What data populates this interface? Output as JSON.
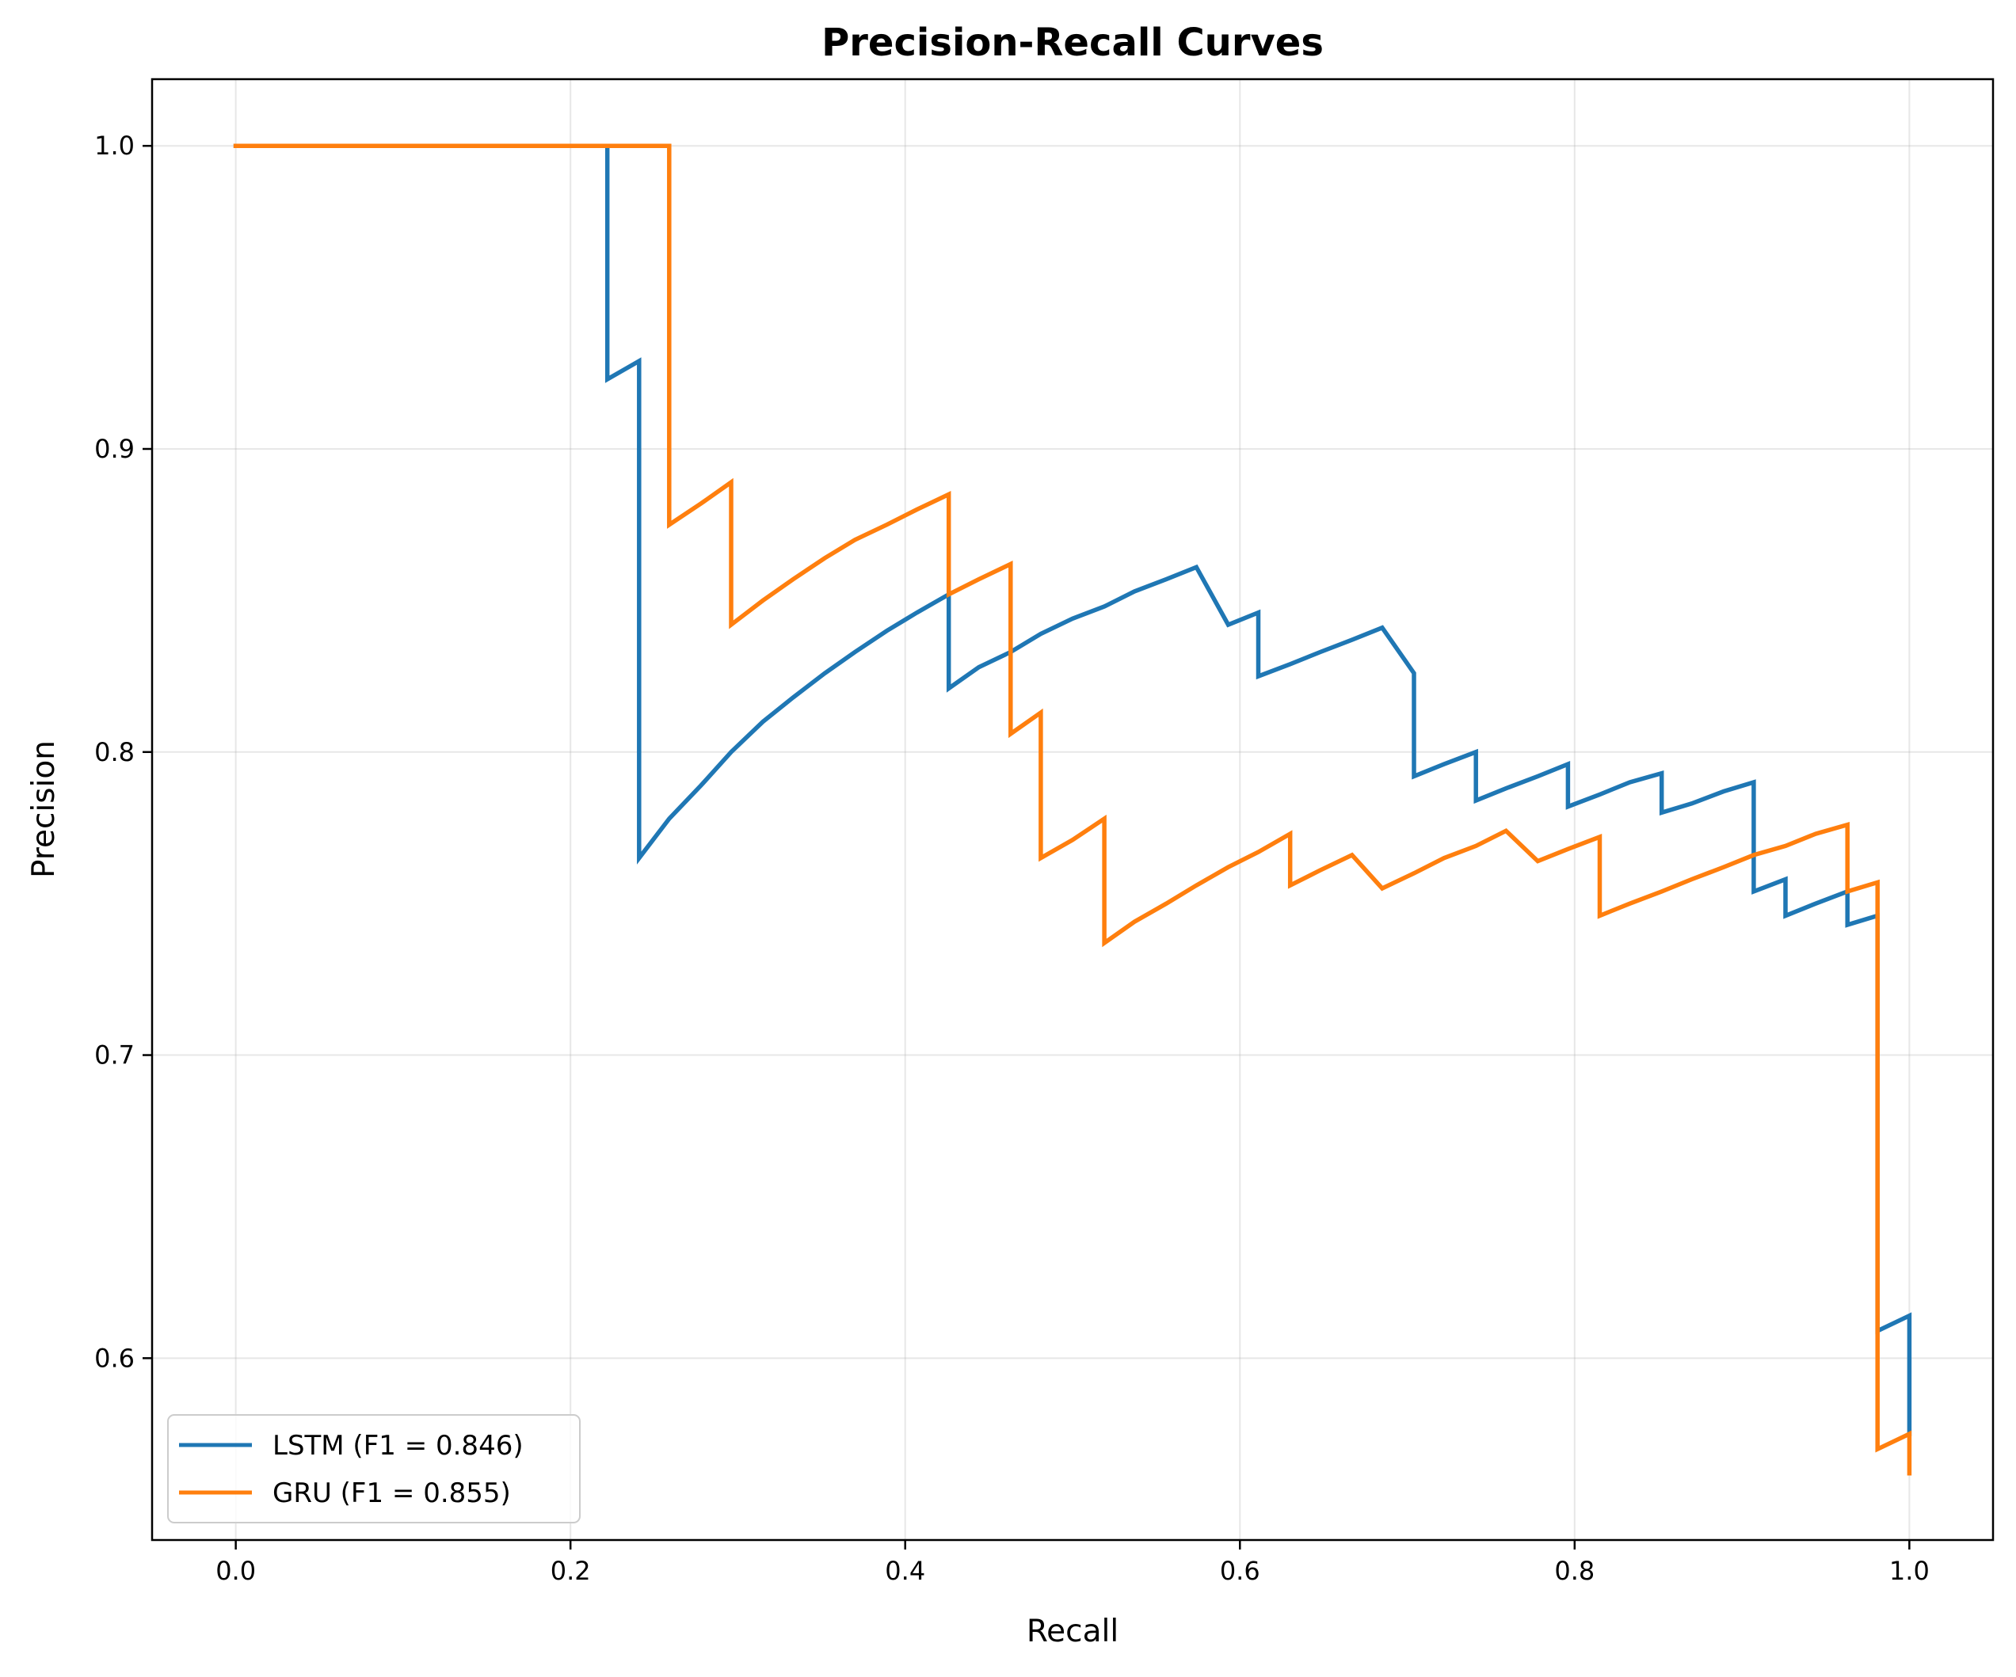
{
  "chart_data": {
    "type": "line",
    "title": "Precision-Recall Curves",
    "xlabel": "Recall",
    "ylabel": "Precision",
    "xlim": [
      -0.05,
      1.05
    ],
    "ylim": [
      0.54,
      1.022
    ],
    "xticks": [
      0.0,
      0.2,
      0.4,
      0.6,
      0.8,
      1.0
    ],
    "xtick_labels": [
      "0.0",
      "0.2",
      "0.4",
      "0.6",
      "0.8",
      "1.0"
    ],
    "yticks": [
      0.6,
      0.7,
      0.8,
      0.9,
      1.0
    ],
    "ytick_labels": [
      "0.6",
      "0.7",
      "0.8",
      "0.9",
      "1.0"
    ],
    "grid": true,
    "legend_position": "lower-left",
    "series": [
      {
        "name": "LSTM (F1 = 0.846)",
        "color": "#1f77b4",
        "points": [
          [
            0.0,
            1.0
          ],
          [
            0.222,
            1.0
          ],
          [
            0.222,
            0.923
          ],
          [
            0.241,
            0.929
          ],
          [
            0.241,
            0.765
          ],
          [
            0.259,
            0.778
          ],
          [
            0.278,
            0.789
          ],
          [
            0.296,
            0.8
          ],
          [
            0.315,
            0.81
          ],
          [
            0.333,
            0.818
          ],
          [
            0.352,
            0.826
          ],
          [
            0.37,
            0.833
          ],
          [
            0.389,
            0.84
          ],
          [
            0.407,
            0.846
          ],
          [
            0.426,
            0.852
          ],
          [
            0.426,
            0.821
          ],
          [
            0.444,
            0.828
          ],
          [
            0.463,
            0.833
          ],
          [
            0.481,
            0.839
          ],
          [
            0.5,
            0.844
          ],
          [
            0.519,
            0.848
          ],
          [
            0.537,
            0.853
          ],
          [
            0.556,
            0.857
          ],
          [
            0.574,
            0.861
          ],
          [
            0.593,
            0.842
          ],
          [
            0.611,
            0.846
          ],
          [
            0.611,
            0.825
          ],
          [
            0.63,
            0.829
          ],
          [
            0.648,
            0.833
          ],
          [
            0.667,
            0.837
          ],
          [
            0.685,
            0.841
          ],
          [
            0.704,
            0.826
          ],
          [
            0.704,
            0.792
          ],
          [
            0.722,
            0.796
          ],
          [
            0.741,
            0.8
          ],
          [
            0.741,
            0.784
          ],
          [
            0.759,
            0.788
          ],
          [
            0.778,
            0.792
          ],
          [
            0.796,
            0.796
          ],
          [
            0.796,
            0.782
          ],
          [
            0.815,
            0.786
          ],
          [
            0.833,
            0.79
          ],
          [
            0.852,
            0.793
          ],
          [
            0.852,
            0.78
          ],
          [
            0.87,
            0.783
          ],
          [
            0.889,
            0.787
          ],
          [
            0.907,
            0.79
          ],
          [
            0.907,
            0.754
          ],
          [
            0.926,
            0.758
          ],
          [
            0.926,
            0.746
          ],
          [
            0.944,
            0.75
          ],
          [
            0.963,
            0.754
          ],
          [
            0.963,
            0.743
          ],
          [
            0.981,
            0.746
          ],
          [
            0.981,
            0.609
          ],
          [
            1.0,
            0.614
          ],
          [
            1.0,
            0.575
          ]
        ]
      },
      {
        "name": "GRU (F1 = 0.855)",
        "color": "#ff7f0e",
        "points": [
          [
            0.0,
            1.0
          ],
          [
            0.259,
            1.0
          ],
          [
            0.259,
            0.875
          ],
          [
            0.278,
            0.882
          ],
          [
            0.296,
            0.889
          ],
          [
            0.296,
            0.842
          ],
          [
            0.315,
            0.85
          ],
          [
            0.333,
            0.857
          ],
          [
            0.352,
            0.864
          ],
          [
            0.37,
            0.87
          ],
          [
            0.389,
            0.875
          ],
          [
            0.407,
            0.88
          ],
          [
            0.426,
            0.885
          ],
          [
            0.426,
            0.852
          ],
          [
            0.444,
            0.857
          ],
          [
            0.463,
            0.862
          ],
          [
            0.463,
            0.806
          ],
          [
            0.481,
            0.813
          ],
          [
            0.481,
            0.765
          ],
          [
            0.5,
            0.771
          ],
          [
            0.519,
            0.778
          ],
          [
            0.519,
            0.737
          ],
          [
            0.537,
            0.744
          ],
          [
            0.556,
            0.75
          ],
          [
            0.574,
            0.756
          ],
          [
            0.593,
            0.762
          ],
          [
            0.611,
            0.767
          ],
          [
            0.63,
            0.773
          ],
          [
            0.63,
            0.756
          ],
          [
            0.648,
            0.761
          ],
          [
            0.667,
            0.766
          ],
          [
            0.685,
            0.755
          ],
          [
            0.704,
            0.76
          ],
          [
            0.722,
            0.765
          ],
          [
            0.741,
            0.769
          ],
          [
            0.759,
            0.774
          ],
          [
            0.778,
            0.764
          ],
          [
            0.796,
            0.768
          ],
          [
            0.815,
            0.772
          ],
          [
            0.815,
            0.746
          ],
          [
            0.833,
            0.75
          ],
          [
            0.852,
            0.754
          ],
          [
            0.87,
            0.758
          ],
          [
            0.889,
            0.762
          ],
          [
            0.907,
            0.766
          ],
          [
            0.926,
            0.769
          ],
          [
            0.944,
            0.773
          ],
          [
            0.963,
            0.776
          ],
          [
            0.963,
            0.754
          ],
          [
            0.981,
            0.757
          ],
          [
            0.981,
            0.57
          ],
          [
            1.0,
            0.575
          ],
          [
            1.0,
            0.562
          ]
        ]
      }
    ]
  }
}
